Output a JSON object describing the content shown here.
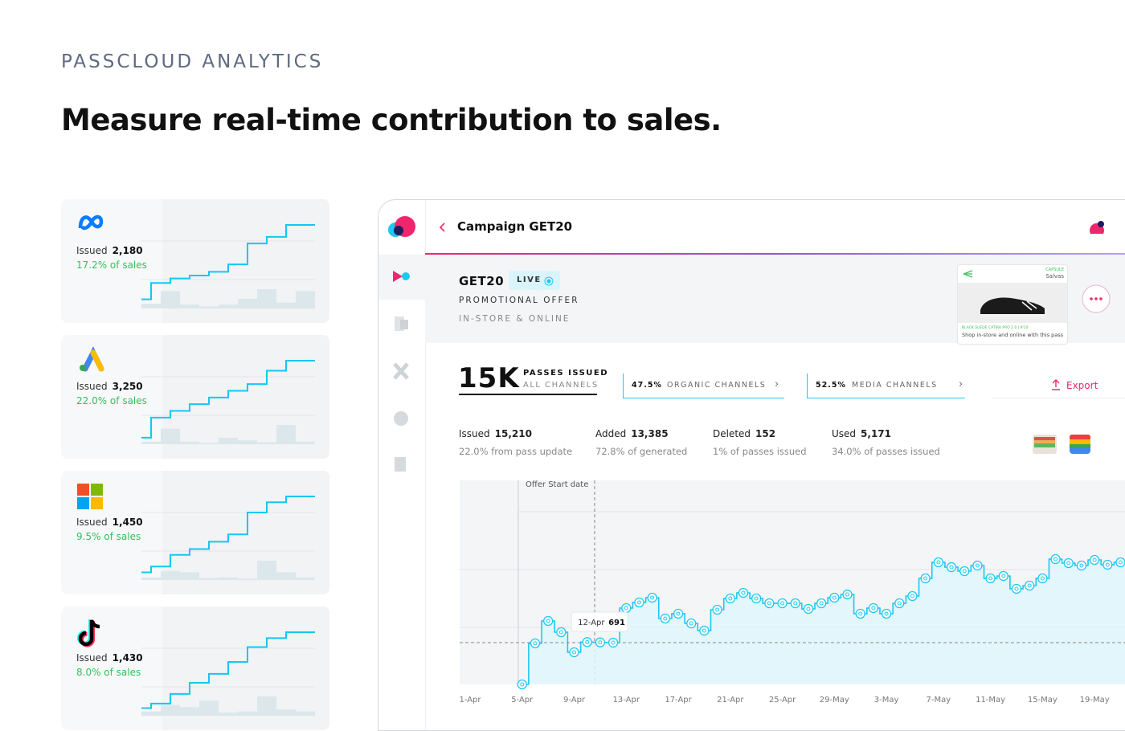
{
  "header": {
    "eyebrow": "PASSCLOUD ANALYTICS",
    "title": "Measure real-time contribution to sales."
  },
  "channels": [
    {
      "label": "Issued",
      "value": "2,180",
      "share": "17.2% of sales",
      "line": [
        8,
        30,
        36,
        40,
        45,
        55,
        83,
        92,
        108,
        108
      ],
      "bars": [
        5,
        18,
        4,
        2,
        4,
        10,
        20,
        6,
        18
      ]
    },
    {
      "label": "Issued",
      "value": "3,250",
      "share": "22.0% of sales",
      "line": [
        5,
        35,
        45,
        55,
        65,
        75,
        85,
        105,
        120,
        120
      ],
      "bars": [
        4,
        24,
        4,
        2,
        10,
        6,
        3,
        30,
        4
      ]
    },
    {
      "label": "Issued",
      "value": "1,450",
      "share": "9.5% of sales",
      "line": [
        6,
        14,
        30,
        38,
        48,
        58,
        88,
        102,
        110,
        110
      ],
      "bars": [
        4,
        14,
        12,
        3,
        4,
        2,
        30,
        12,
        4
      ]
    },
    {
      "label": "Issued",
      "value": "1,430",
      "share": "8.0% of sales",
      "line": [
        6,
        12,
        25,
        40,
        52,
        68,
        88,
        100,
        108,
        108
      ],
      "bars": [
        4,
        10,
        8,
        14,
        3,
        4,
        18,
        6,
        4
      ]
    }
  ],
  "campaign": {
    "title": "Campaign GET20",
    "code": "GET20",
    "status": "LIVE",
    "type": "PROMOTIONAL OFFER",
    "scope": "IN-STORE & ONLINE",
    "pass_preview": {
      "brand": "CAPSULE",
      "store": "Salvas",
      "product": "BLACK SUEDE CATIRA PRO 2.0 | 9'10",
      "caption": "Shop in-store and online with this pass"
    }
  },
  "summary": {
    "total": "15K",
    "total_label": "PASSES ISSUED",
    "total_sub": "ALL CHANNELS",
    "organic_share": "47.5%",
    "organic_label": "ORGANIC CHANNELS",
    "media_share": "52.5%",
    "media_label": "MEDIA CHANNELS",
    "export": "Export"
  },
  "metrics": [
    {
      "label": "Issued",
      "value": "15,210",
      "note": "22.0% from pass update"
    },
    {
      "label": "Added",
      "value": "13,385",
      "note": "72.8% of generated"
    },
    {
      "label": "Deleted",
      "value": "152",
      "note": "1% of passes issued"
    },
    {
      "label": "Used",
      "value": "5,171",
      "note": "34.0% of passes issued"
    }
  ],
  "chart_data": {
    "type": "line",
    "step": true,
    "annotation": "Offer Start date",
    "tooltip_date": "12-Apr",
    "categories": [
      "1-Apr",
      null,
      null,
      null,
      "5-Apr",
      null,
      null,
      null,
      "9-Apr",
      null,
      null,
      null,
      "13-Apr",
      null,
      null,
      null,
      "17-Apr",
      null,
      null,
      null,
      "21-Apr",
      null,
      null,
      null,
      "25-Apr",
      null,
      null,
      null,
      "29-May",
      null,
      null,
      null,
      "3-May",
      null,
      null,
      null,
      "7-May",
      null,
      null,
      null,
      "11-May",
      null,
      null,
      null,
      "15-May",
      null,
      null,
      null,
      "19-May",
      null,
      null
    ],
    "series": [
      {
        "color": "#1ec8f0",
        "values": [
          null,
          null,
          null,
          null,
          0,
          680,
          1050,
          864,
          532,
          700,
          695,
          691,
          1263,
          1356,
          1435,
          1090,
          1170,
          1010,
          890,
          1236,
          1422,
          1515,
          1422,
          1342,
          1342,
          1342,
          1249,
          1342,
          1435,
          1488,
          1170,
          1263,
          1170,
          1342,
          1462,
          1754,
          2020,
          1940,
          1874,
          1967,
          1754,
          1794,
          1582,
          1635,
          1754,
          2073,
          2007,
          1967,
          2060,
          1980,
          2020
        ]
      }
    ],
    "ylim": [
      0,
      3376
    ]
  }
}
